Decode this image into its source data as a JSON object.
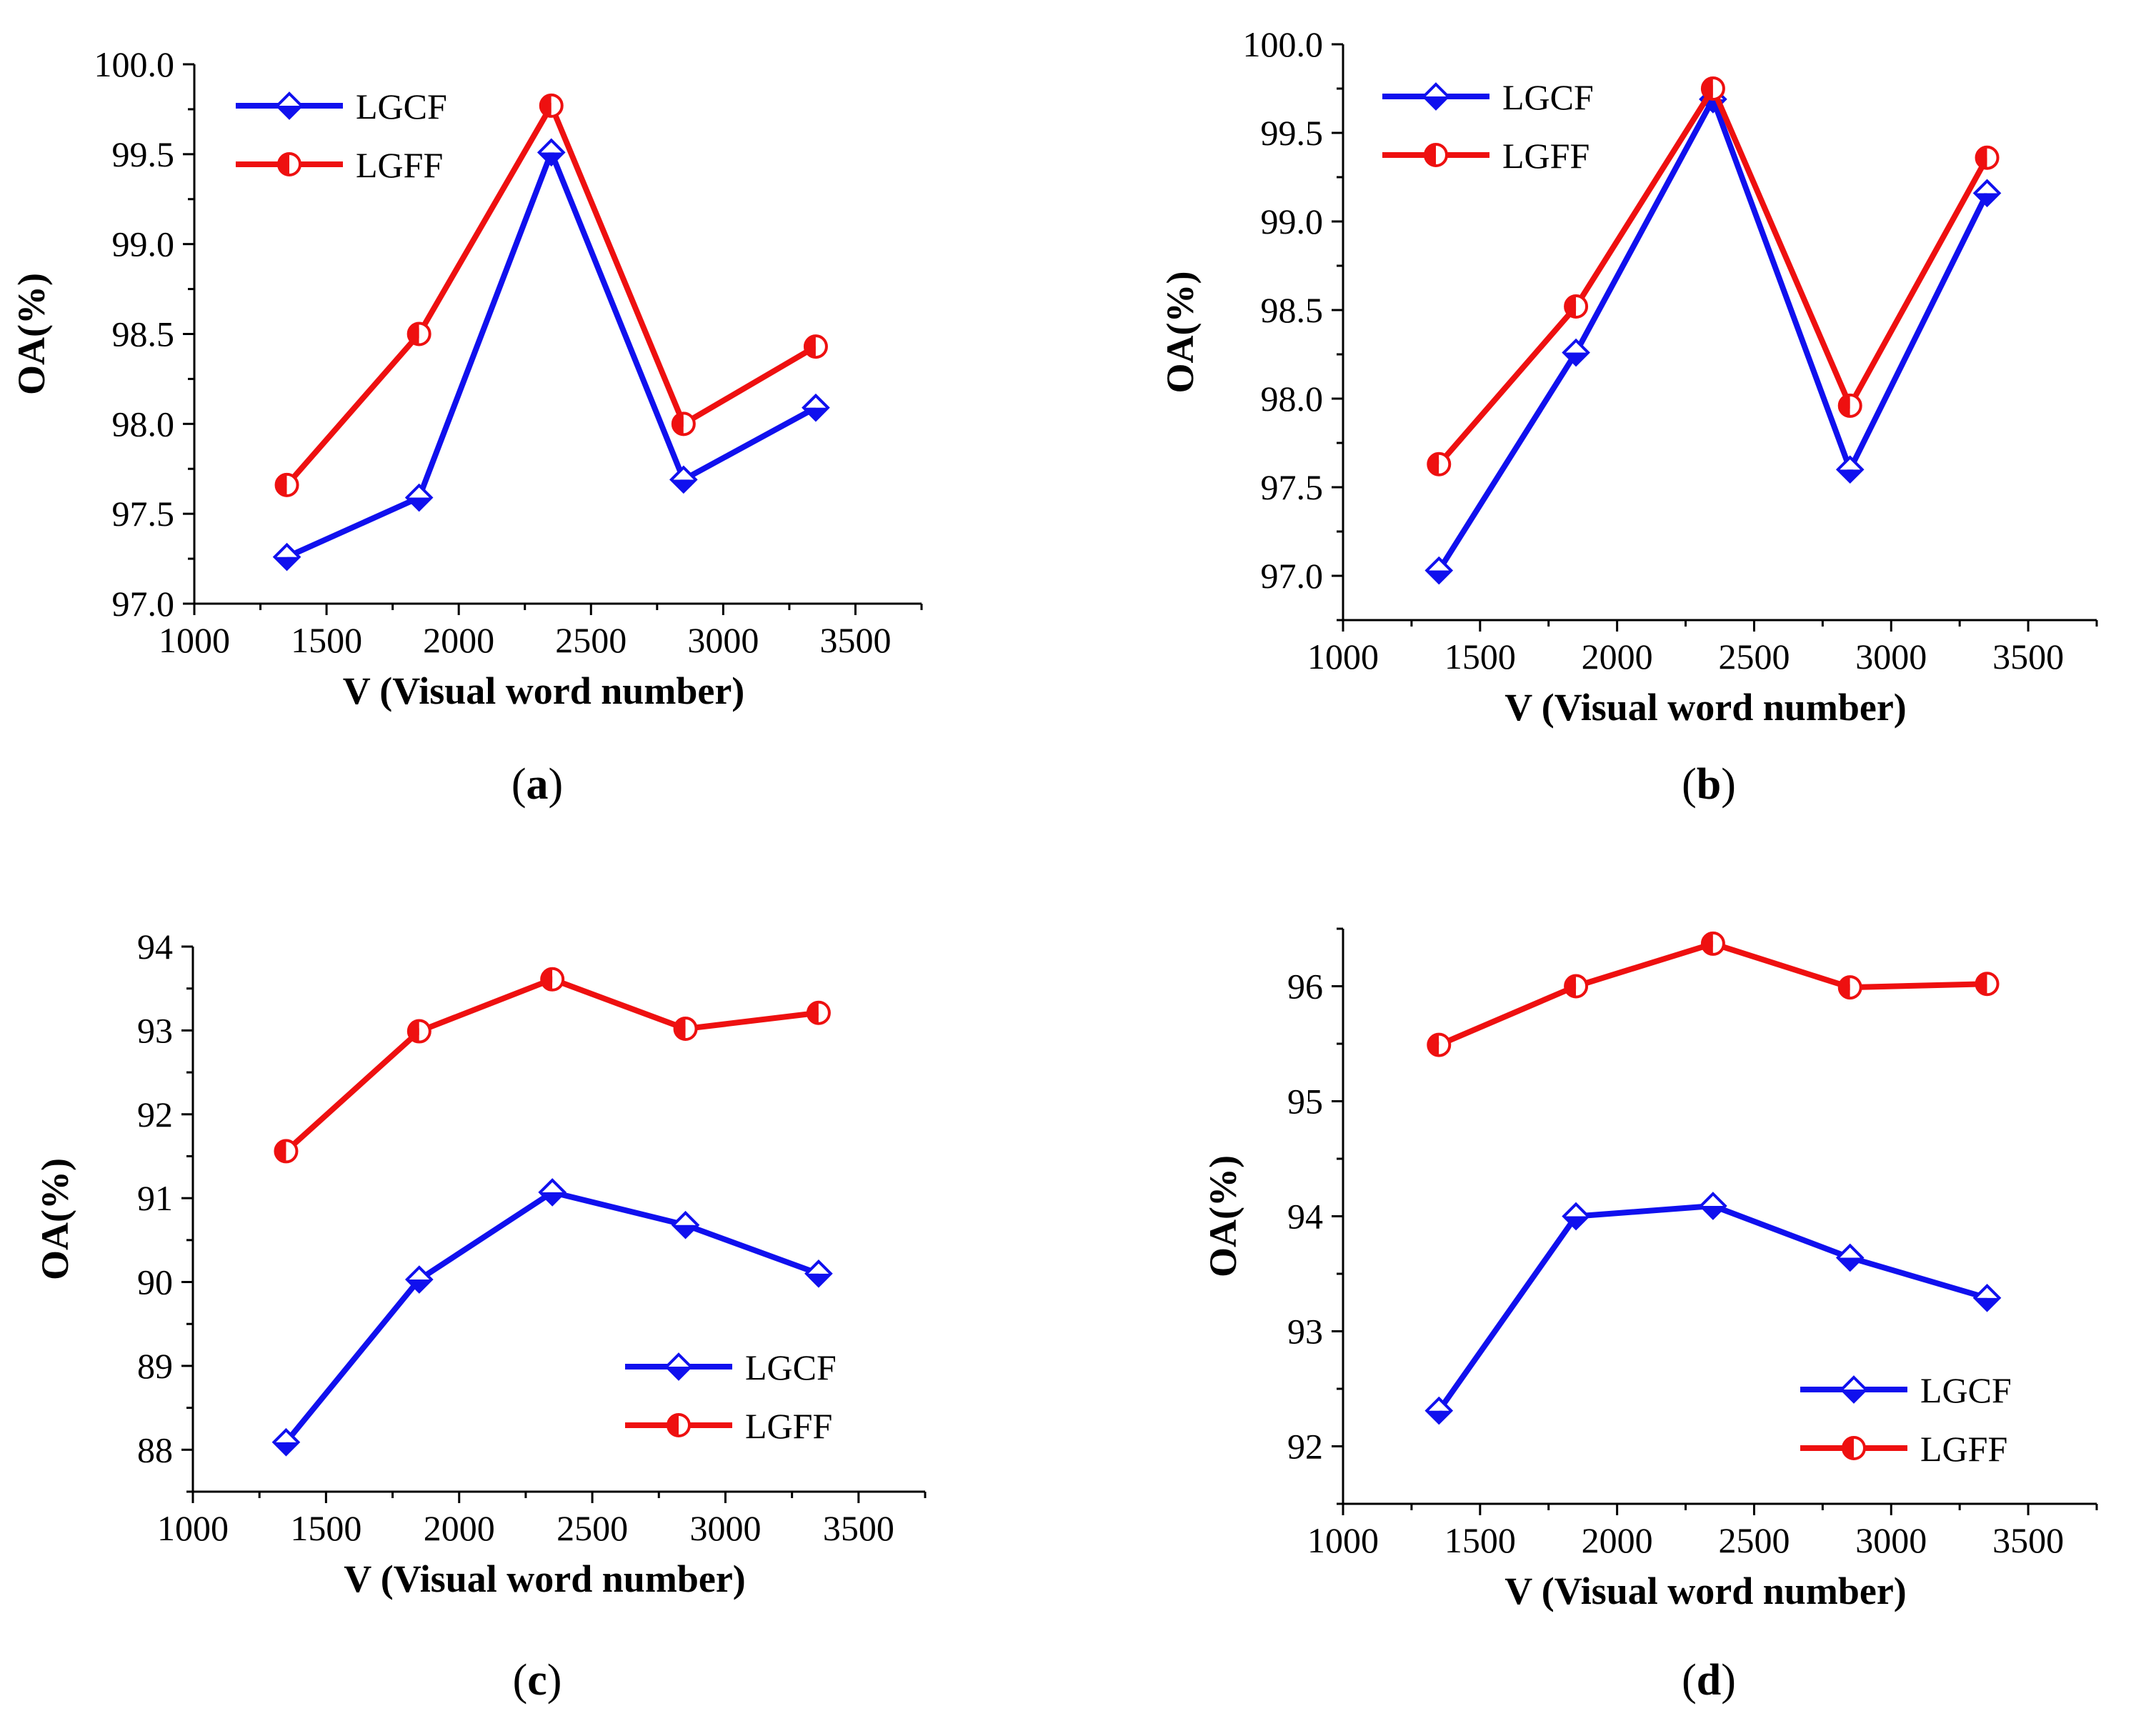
{
  "colors": {
    "lgcf": "#1010ee",
    "lgff": "#ee1010",
    "axis": "#000000"
  },
  "chart_data": [
    {
      "type": "line",
      "caption": {
        "before": "(",
        "letter": "a",
        "after": ")"
      },
      "xlabel": "V (Visual word number)",
      "ylabel": "OA(%)",
      "xlim": [
        1000,
        3750
      ],
      "ylim": [
        97.0,
        100.0
      ],
      "xticks": [
        1000,
        1500,
        2000,
        2500,
        3000,
        3500
      ],
      "yticks": [
        97.0,
        97.5,
        98.0,
        98.5,
        99.0,
        99.5,
        100.0
      ],
      "ytick_decimals": 1,
      "x": [
        1350,
        1850,
        2350,
        2850,
        3350
      ],
      "legend_position": "top-left",
      "grid": false,
      "series": [
        {
          "name": "LGCF",
          "marker": "diamond",
          "values": [
            97.26,
            97.59,
            99.51,
            97.69,
            98.09
          ]
        },
        {
          "name": "LGFF",
          "marker": "half-circle",
          "values": [
            97.66,
            98.5,
            99.77,
            98.0,
            98.43
          ]
        }
      ]
    },
    {
      "type": "line",
      "caption": {
        "before": "(",
        "letter": "b",
        "after": ")"
      },
      "xlabel": "V (Visual word number)",
      "ylabel": "OA(%)",
      "xlim": [
        1000,
        3750
      ],
      "ylim": [
        96.75,
        100.0
      ],
      "xticks": [
        1000,
        1500,
        2000,
        2500,
        3000,
        3500
      ],
      "yticks": [
        97.0,
        97.5,
        98.0,
        98.5,
        99.0,
        99.5,
        100.0
      ],
      "ytick_decimals": 1,
      "x": [
        1350,
        1850,
        2350,
        2850,
        3350
      ],
      "legend_position": "top-left",
      "grid": false,
      "series": [
        {
          "name": "LGCF",
          "marker": "diamond",
          "values": [
            97.03,
            98.26,
            99.69,
            97.6,
            99.16
          ]
        },
        {
          "name": "LGFF",
          "marker": "half-circle",
          "values": [
            97.63,
            98.52,
            99.75,
            97.96,
            99.36
          ]
        }
      ]
    },
    {
      "type": "line",
      "caption": {
        "before": "(",
        "letter": "c",
        "after": ")"
      },
      "xlabel": "V (Visual word number)",
      "ylabel": "OA(%)",
      "xlim": [
        1000,
        3750
      ],
      "ylim": [
        87.5,
        94.0
      ],
      "xticks": [
        1000,
        1500,
        2000,
        2500,
        3000,
        3500
      ],
      "yticks": [
        88,
        89,
        90,
        91,
        92,
        93,
        94
      ],
      "ytick_decimals": 0,
      "x": [
        1350,
        1850,
        2350,
        2850,
        3350
      ],
      "legend_position": "bottom-right",
      "grid": false,
      "series": [
        {
          "name": "LGCF",
          "marker": "diamond",
          "values": [
            88.09,
            90.03,
            91.07,
            90.68,
            90.1
          ]
        },
        {
          "name": "LGFF",
          "marker": "half-circle",
          "values": [
            91.56,
            92.99,
            93.61,
            93.02,
            93.21
          ]
        }
      ]
    },
    {
      "type": "line",
      "caption": {
        "before": "(",
        "letter": "d",
        "after": ")"
      },
      "xlabel": "V (Visual word number)",
      "ylabel": "OA(%)",
      "xlim": [
        1000,
        3750
      ],
      "ylim": [
        91.5,
        96.5
      ],
      "xticks": [
        1000,
        1500,
        2000,
        2500,
        3000,
        3500
      ],
      "yticks": [
        92,
        93,
        94,
        95,
        96
      ],
      "ytick_decimals": 0,
      "x": [
        1350,
        1850,
        2350,
        2850,
        3350
      ],
      "legend_position": "bottom-right",
      "grid": false,
      "series": [
        {
          "name": "LGCF",
          "marker": "diamond",
          "values": [
            92.31,
            94.0,
            94.09,
            93.64,
            93.29
          ]
        },
        {
          "name": "LGFF",
          "marker": "half-circle",
          "values": [
            95.49,
            96.0,
            96.37,
            95.99,
            96.02
          ]
        }
      ]
    }
  ]
}
